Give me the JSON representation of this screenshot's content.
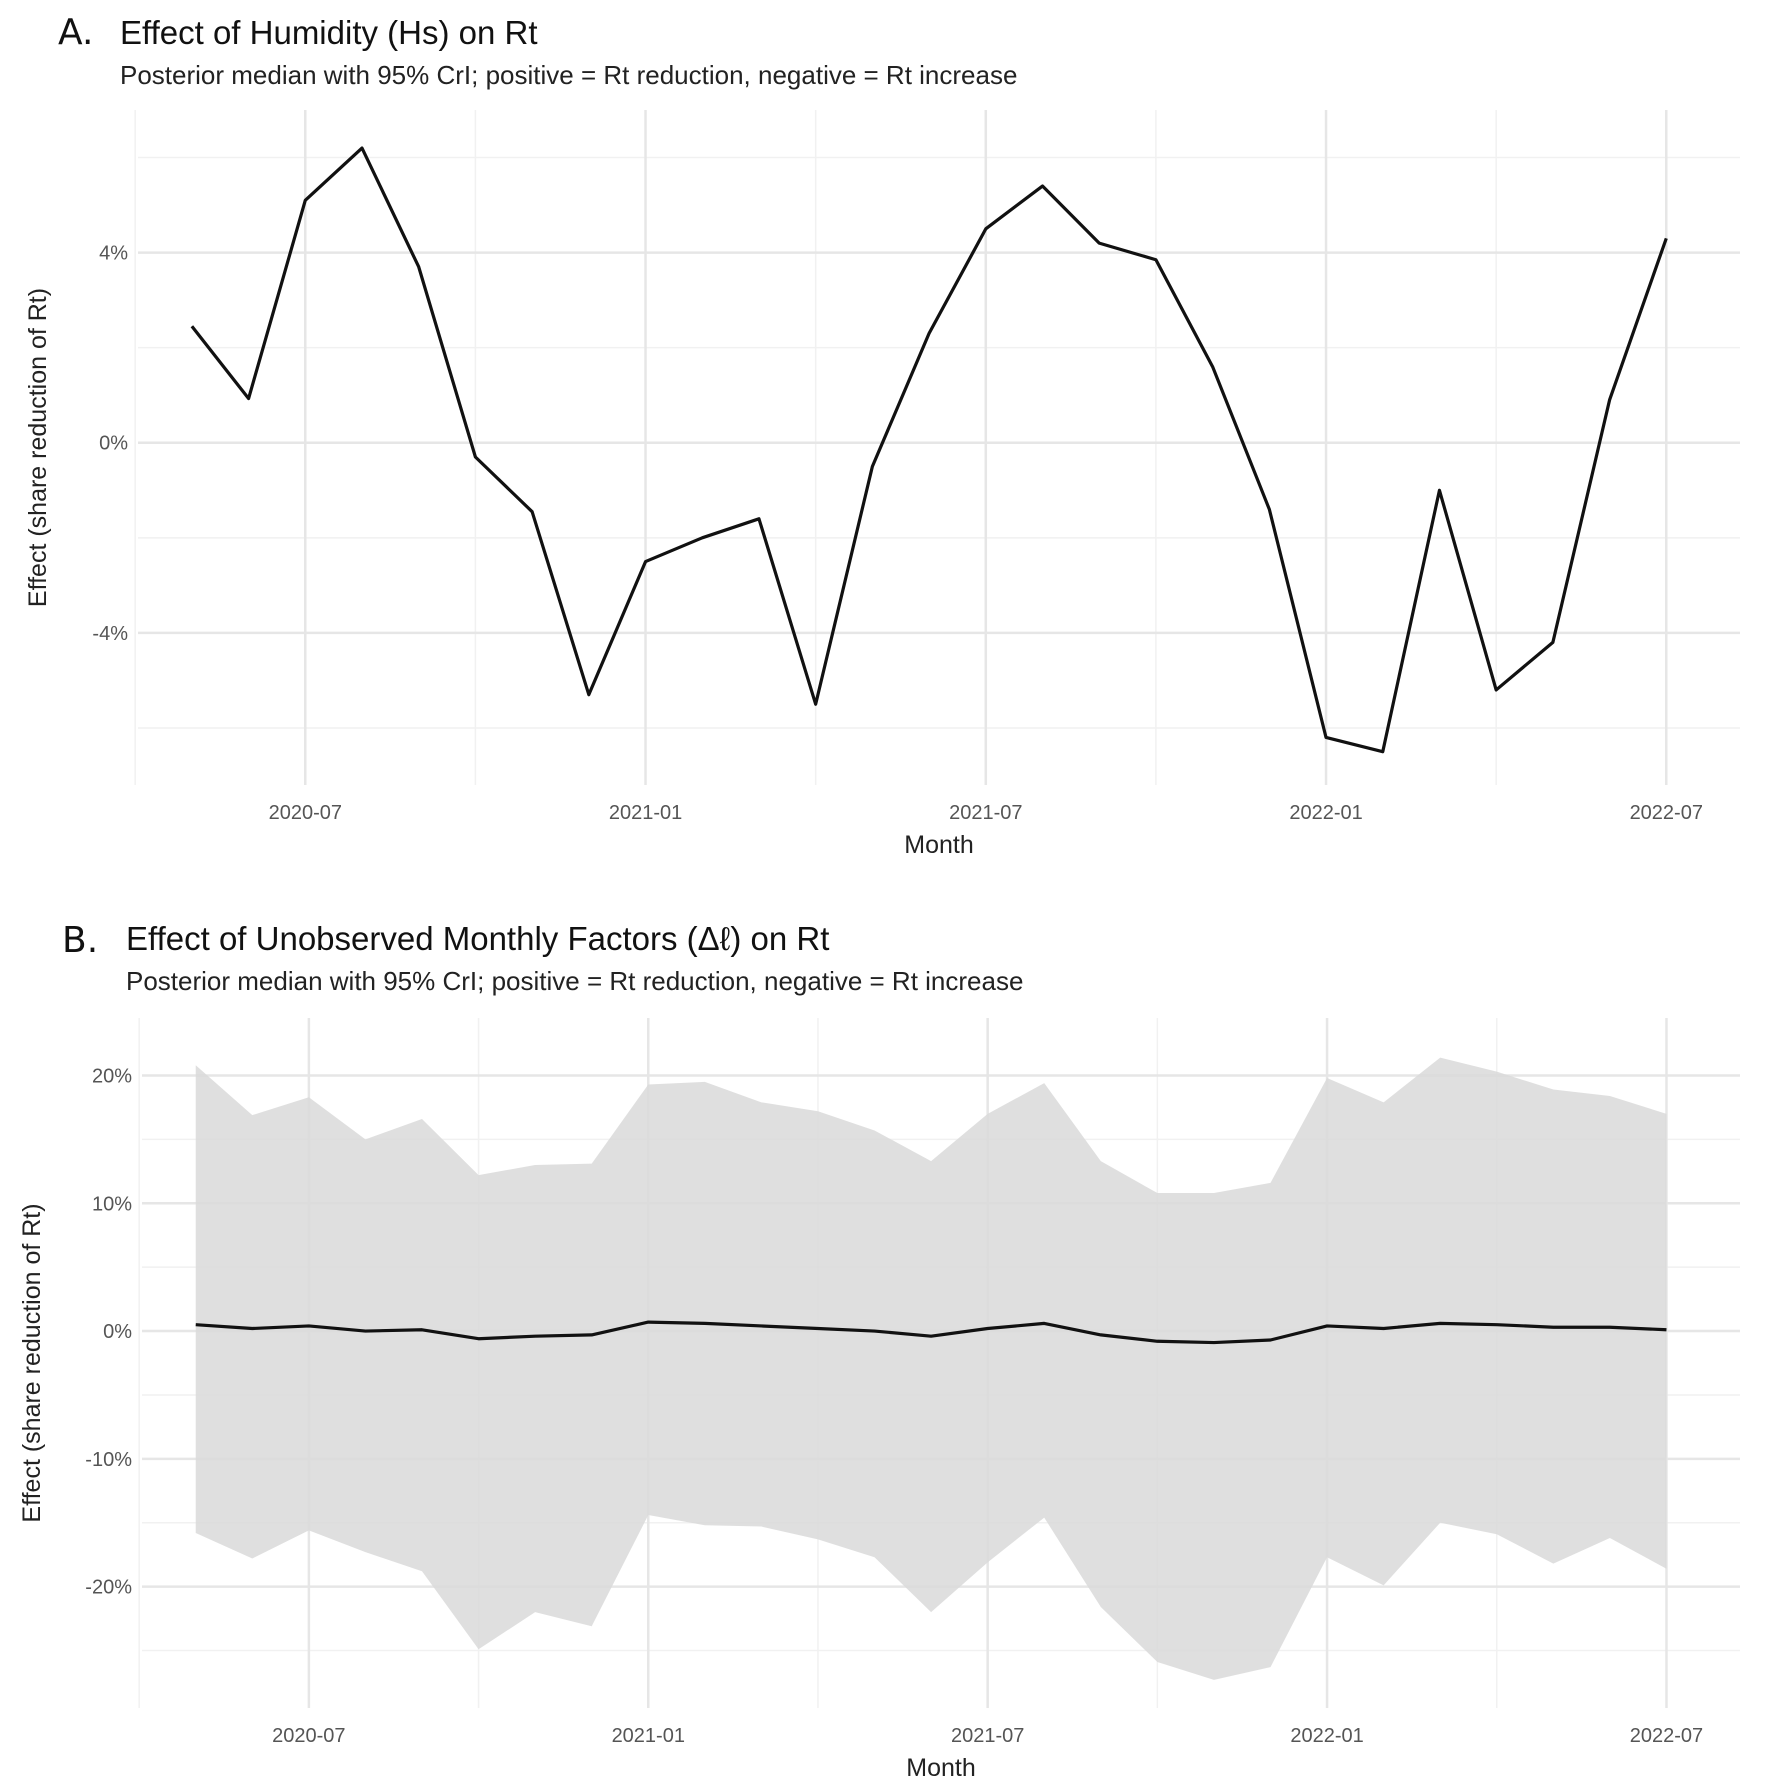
{
  "chart_data": [
    {
      "panel_letter": "A.",
      "type": "line",
      "title": "Effect of Humidity (Hs) on Rt",
      "subtitle": "Posterior median with 95% CrI; positive = Rt reduction, negative = Rt increase",
      "xlabel": "Month",
      "ylabel": "Effect (share reduction of Rt)",
      "x": [
        "2020-05",
        "2020-06",
        "2020-07",
        "2020-08",
        "2020-09",
        "2020-10",
        "2020-11",
        "2020-12",
        "2021-01",
        "2021-02",
        "2021-03",
        "2021-04",
        "2021-05",
        "2021-06",
        "2021-07",
        "2021-08",
        "2021-09",
        "2021-10",
        "2021-11",
        "2021-12",
        "2022-01",
        "2022-02",
        "2022-03",
        "2022-04",
        "2022-05",
        "2022-06",
        "2022-07"
      ],
      "x_index": [
        0,
        1,
        2,
        3,
        4,
        5,
        6,
        7,
        8,
        9,
        10,
        11,
        12,
        13,
        14,
        15,
        16,
        17,
        18,
        19,
        20,
        21,
        22,
        23,
        24,
        25,
        26
      ],
      "series": [
        {
          "name": "median",
          "values": [
            2.45,
            0.93,
            5.1,
            6.2,
            3.7,
            -0.3,
            -1.45,
            -5.3,
            -2.5,
            -2.0,
            -1.6,
            -5.5,
            -0.5,
            2.3,
            4.5,
            5.4,
            4.2,
            3.85,
            1.6,
            -1.4,
            -6.2,
            -6.5,
            -1.0,
            -5.2,
            -4.2,
            0.9,
            4.3
          ]
        }
      ],
      "ylim": [
        -7.2,
        7.0
      ],
      "xlim": [
        -0.95,
        27.3
      ],
      "yticks": [
        -4,
        0,
        4
      ],
      "ytick_labels": [
        "-4%",
        "0%",
        "4%"
      ],
      "yminor": [
        -6,
        -2,
        2,
        6
      ],
      "xticks": [
        2,
        8,
        14,
        20,
        26
      ],
      "xtick_labels": [
        "2020-07",
        "2021-01",
        "2021-07",
        "2022-01",
        "2022-07"
      ],
      "xminor": [
        -1,
        5,
        11,
        17,
        23
      ],
      "grid": true
    },
    {
      "panel_letter": "B.",
      "type": "area",
      "title": "Effect of Unobserved Monthly Factors (Δℓ) on Rt",
      "subtitle": "Posterior median with 95% CrI; positive = Rt reduction, negative = Rt increase",
      "xlabel": "Month",
      "ylabel": "Effect (share reduction of Rt)",
      "x": [
        "2020-05",
        "2020-06",
        "2020-07",
        "2020-08",
        "2020-09",
        "2020-10",
        "2020-11",
        "2020-12",
        "2021-01",
        "2021-02",
        "2021-03",
        "2021-04",
        "2021-05",
        "2021-06",
        "2021-07",
        "2021-08",
        "2021-09",
        "2021-10",
        "2021-11",
        "2021-12",
        "2022-01",
        "2022-02",
        "2022-03",
        "2022-04",
        "2022-05",
        "2022-06",
        "2022-07"
      ],
      "x_index": [
        0,
        1,
        2,
        3,
        4,
        5,
        6,
        7,
        8,
        9,
        10,
        11,
        12,
        13,
        14,
        15,
        16,
        17,
        18,
        19,
        20,
        21,
        22,
        23,
        24,
        25,
        26
      ],
      "series": [
        {
          "name": "median",
          "values": [
            0.5,
            0.2,
            0.4,
            0.0,
            0.1,
            -0.6,
            -0.4,
            -0.3,
            0.7,
            0.6,
            0.4,
            0.2,
            0.0,
            -0.4,
            0.2,
            0.6,
            -0.3,
            -0.8,
            -0.9,
            -0.7,
            0.4,
            0.2,
            0.6,
            0.5,
            0.3,
            0.3,
            0.1
          ]
        },
        {
          "name": "lower 95% CrI",
          "values": [
            -15.8,
            -17.8,
            -15.6,
            -17.3,
            -18.8,
            -24.9,
            -22.0,
            -23.1,
            -14.4,
            -15.2,
            -15.3,
            -16.3,
            -17.7,
            -22.0,
            -18.1,
            -14.6,
            -21.6,
            -25.9,
            -27.3,
            -26.3,
            -17.7,
            -19.9,
            -15.0,
            -15.9,
            -18.2,
            -16.2,
            -18.6
          ]
        },
        {
          "name": "upper 95% CrI",
          "values": [
            20.8,
            16.9,
            18.3,
            15.0,
            16.6,
            12.2,
            13.0,
            13.1,
            19.3,
            19.5,
            17.9,
            17.2,
            15.7,
            13.3,
            17.0,
            19.4,
            13.3,
            10.8,
            10.8,
            11.6,
            19.8,
            17.9,
            21.4,
            20.3,
            18.9,
            18.4,
            17.0
          ]
        }
      ],
      "ylim": [
        -29.5,
        24.5
      ],
      "xlim": [
        -0.95,
        27.3
      ],
      "yticks": [
        -20,
        -10,
        0,
        10,
        20
      ],
      "ytick_labels": [
        "-20%",
        "-10%",
        "0%",
        "10%",
        "20%"
      ],
      "yminor": [
        -25,
        -15,
        -5,
        5,
        15
      ],
      "xticks": [
        2,
        8,
        14,
        20,
        26
      ],
      "xtick_labels": [
        "2020-07",
        "2021-01",
        "2021-07",
        "2022-01",
        "2022-07"
      ],
      "xminor": [
        -1,
        5,
        11,
        17,
        23
      ],
      "grid": true
    }
  ],
  "colors": {
    "line": "#111111",
    "ribbon": "#d9d9d9",
    "grid_major": "#e6e6e6",
    "grid_minor": "#f1f1f1",
    "tick_text": "#555555"
  }
}
